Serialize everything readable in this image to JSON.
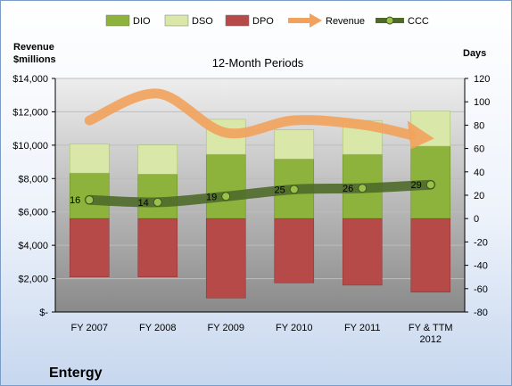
{
  "company": "Entergy",
  "chart_data": {
    "type": "bar",
    "title": "12-Month Periods",
    "categories": [
      "FY 2007",
      "FY 2008",
      "FY 2009",
      "FY 2010",
      "FY 2011",
      "FY & TTM 2012"
    ],
    "legend": {
      "placement": "top",
      "entries": [
        "DIO",
        "DSO",
        "DPO",
        "Revenue",
        "CCC"
      ]
    },
    "left_axis": {
      "title_lines": [
        "Revenue",
        "$millions"
      ],
      "range": [
        0,
        14000
      ],
      "tick_labels": [
        "$-",
        "$2,000",
        "$4,000",
        "$6,000",
        "$8,000",
        "$10,000",
        "$12,000",
        "$14,000"
      ]
    },
    "right_axis": {
      "title": "Days",
      "range": [
        -80,
        120
      ],
      "tick_labels": [
        "-80",
        "-60",
        "-40",
        "-20",
        "0",
        "20",
        "40",
        "60",
        "80",
        "100",
        "120"
      ]
    },
    "series": [
      {
        "name": "DIO",
        "kind": "stacked-bar",
        "axis": "right",
        "color": "#8db33c",
        "values": [
          39,
          38,
          55,
          51,
          55,
          62
        ]
      },
      {
        "name": "DSO",
        "kind": "stacked-bar",
        "axis": "right",
        "color": "#d9e8a8",
        "values": [
          25,
          25,
          30,
          25,
          29,
          30
        ]
      },
      {
        "name": "DPO",
        "kind": "negative-bar",
        "axis": "right",
        "color": "#b54a49",
        "values": [
          -50,
          -50,
          -68,
          -55,
          -57,
          -63
        ]
      },
      {
        "name": "Revenue",
        "kind": "arrow-line",
        "axis": "left",
        "color": "#f2a25c",
        "values": [
          11484,
          13094,
          10746,
          11488,
          11229,
          10400
        ]
      },
      {
        "name": "CCC",
        "kind": "line",
        "axis": "right",
        "color": "#4e6a2a",
        "values": [
          16,
          14,
          19,
          25,
          26,
          29
        ],
        "labels": [
          "16",
          "14",
          "19",
          "25",
          "26",
          "29"
        ]
      }
    ],
    "grid": true
  }
}
